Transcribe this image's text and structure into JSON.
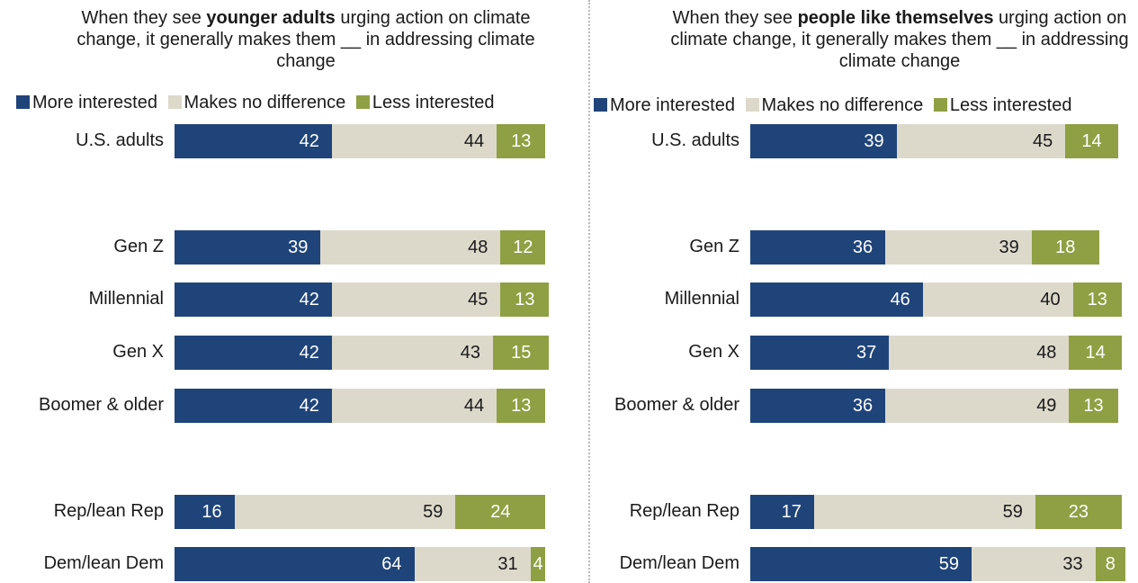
{
  "colors": {
    "more": "#1f4479",
    "nodiff": "#dcd9cb",
    "less": "#8ea043",
    "text_on_dark": "#ffffff",
    "text_on_light": "#1a1a1a"
  },
  "chart_data": [
    {
      "type": "bar",
      "orientation": "horizontal",
      "stacked": true,
      "title_parts": [
        "When they see ",
        "younger adults",
        " urging action on climate change, it generally makes them __ in addressing climate change"
      ],
      "legend": [
        "More interested",
        "Makes no difference",
        "Less interested"
      ],
      "categories": [
        "U.S. adults",
        "Gen Z",
        "Millennial",
        "Gen X",
        "Boomer & older",
        "Rep/lean Rep",
        "Dem/lean Dem"
      ],
      "series": [
        {
          "name": "More interested",
          "values": [
            42,
            39,
            42,
            42,
            42,
            16,
            64
          ]
        },
        {
          "name": "Makes no difference",
          "values": [
            44,
            48,
            45,
            43,
            44,
            59,
            31
          ]
        },
        {
          "name": "Less interested",
          "values": [
            13,
            12,
            13,
            15,
            13,
            24,
            4
          ]
        }
      ]
    },
    {
      "type": "bar",
      "orientation": "horizontal",
      "stacked": true,
      "title_parts": [
        "When they see ",
        "people like themselves",
        " urging action on climate change, it generally makes them __ in addressing climate change"
      ],
      "legend": [
        "More interested",
        "Makes no difference",
        "Less interested"
      ],
      "categories": [
        "U.S. adults",
        "Gen Z",
        "Millennial",
        "Gen X",
        "Boomer & older",
        "Rep/lean Rep",
        "Dem/lean Dem"
      ],
      "series": [
        {
          "name": "More interested",
          "values": [
            39,
            36,
            46,
            37,
            36,
            17,
            59
          ]
        },
        {
          "name": "Makes no difference",
          "values": [
            45,
            39,
            40,
            48,
            49,
            59,
            33
          ]
        },
        {
          "name": "Less interested",
          "values": [
            14,
            18,
            13,
            14,
            13,
            23,
            8
          ]
        }
      ]
    }
  ]
}
